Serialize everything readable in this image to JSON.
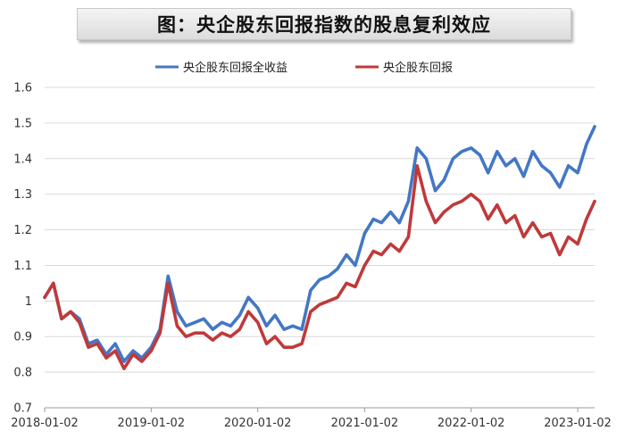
{
  "chart_data": {
    "type": "line",
    "title": "图：央企股东回报指数的股息复利效应",
    "xlabel": "",
    "ylabel": "",
    "ylim": [
      0.7,
      1.6
    ],
    "yticks": [
      "0.7",
      "0.8",
      "0.9",
      "1",
      "1.1",
      "1.2",
      "1.3",
      "1.4",
      "1.5",
      "1.6"
    ],
    "xticks": [
      "2018-01-02",
      "2019-01-02",
      "2020-01-02",
      "2021-01-02",
      "2022-01-02",
      "2023-01-02"
    ],
    "grid": "horizontal",
    "legend_position": "top",
    "x": [
      "2018-01-02",
      "2018-02-01",
      "2018-03-01",
      "2018-04-01",
      "2018-05-01",
      "2018-06-01",
      "2018-07-01",
      "2018-08-01",
      "2018-09-01",
      "2018-10-01",
      "2018-11-01",
      "2018-12-01",
      "2019-01-02",
      "2019-02-01",
      "2019-03-01",
      "2019-04-01",
      "2019-05-01",
      "2019-06-01",
      "2019-07-01",
      "2019-08-01",
      "2019-09-01",
      "2019-10-01",
      "2019-11-01",
      "2019-12-01",
      "2020-01-02",
      "2020-02-01",
      "2020-03-01",
      "2020-04-01",
      "2020-05-01",
      "2020-06-01",
      "2020-07-01",
      "2020-08-01",
      "2020-09-01",
      "2020-10-01",
      "2020-11-01",
      "2020-12-01",
      "2021-01-02",
      "2021-02-01",
      "2021-03-01",
      "2021-04-01",
      "2021-05-01",
      "2021-06-01",
      "2021-07-01",
      "2021-08-01",
      "2021-09-01",
      "2021-10-01",
      "2021-11-01",
      "2021-12-01",
      "2022-01-02",
      "2022-02-01",
      "2022-03-01",
      "2022-04-01",
      "2022-05-01",
      "2022-06-01",
      "2022-07-01",
      "2022-08-01",
      "2022-09-01",
      "2022-10-01",
      "2022-11-01",
      "2022-12-01",
      "2023-01-02",
      "2023-02-01",
      "2023-03-01"
    ],
    "series": [
      {
        "name": "央企股东回报全收益",
        "color": "#4477c4",
        "values": [
          1.01,
          1.05,
          0.95,
          0.97,
          0.95,
          0.88,
          0.89,
          0.85,
          0.88,
          0.83,
          0.86,
          0.84,
          0.87,
          0.92,
          1.07,
          0.97,
          0.93,
          0.94,
          0.95,
          0.92,
          0.94,
          0.93,
          0.96,
          1.01,
          0.98,
          0.93,
          0.96,
          0.92,
          0.93,
          0.92,
          1.03,
          1.06,
          1.07,
          1.09,
          1.13,
          1.1,
          1.19,
          1.23,
          1.22,
          1.25,
          1.22,
          1.28,
          1.43,
          1.4,
          1.31,
          1.34,
          1.4,
          1.42,
          1.43,
          1.41,
          1.36,
          1.42,
          1.38,
          1.4,
          1.35,
          1.42,
          1.38,
          1.36,
          1.32,
          1.38,
          1.36,
          1.44,
          1.49
        ]
      },
      {
        "name": "央企股东回报",
        "color": "#c0393b",
        "values": [
          1.01,
          1.05,
          0.95,
          0.97,
          0.94,
          0.87,
          0.88,
          0.84,
          0.86,
          0.81,
          0.85,
          0.83,
          0.86,
          0.91,
          1.05,
          0.93,
          0.9,
          0.91,
          0.91,
          0.89,
          0.91,
          0.9,
          0.92,
          0.97,
          0.94,
          0.88,
          0.9,
          0.87,
          0.87,
          0.88,
          0.97,
          0.99,
          1.0,
          1.01,
          1.05,
          1.04,
          1.1,
          1.14,
          1.13,
          1.16,
          1.14,
          1.18,
          1.38,
          1.28,
          1.22,
          1.25,
          1.27,
          1.28,
          1.3,
          1.28,
          1.23,
          1.27,
          1.22,
          1.24,
          1.18,
          1.22,
          1.18,
          1.19,
          1.13,
          1.18,
          1.16,
          1.23,
          1.28
        ]
      }
    ]
  }
}
